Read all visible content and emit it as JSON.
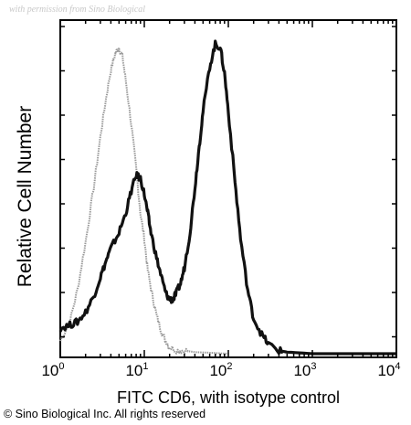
{
  "watermark": "with permission from Sino Biological",
  "chart_data": {
    "type": "line",
    "xlabel": "FITC CD6, with isotype control",
    "ylabel": "Relative Cell Number",
    "xscale": "log",
    "xlim": [
      1,
      10000
    ],
    "ylim": [
      0,
      100
    ],
    "x_ticks": [
      {
        "base": "10",
        "exp": "0"
      },
      {
        "base": "10",
        "exp": "1"
      },
      {
        "base": "10",
        "exp": "2"
      },
      {
        "base": "10",
        "exp": "3"
      },
      {
        "base": "10",
        "exp": "4"
      }
    ],
    "grid": false,
    "legend": "none",
    "series": [
      {
        "style": "isotype",
        "color": "#9a9a9a",
        "x": [
          1.0,
          1.3,
          1.6,
          2.0,
          2.5,
          3.0,
          3.5,
          4.0,
          4.5,
          5.0,
          5.5,
          6.0,
          7.0,
          8.0,
          9.0,
          10.0,
          11.0,
          12.5,
          14.0,
          16.0,
          18.0,
          20.0,
          25.0,
          30.0,
          40.0,
          60.0,
          100.0
        ],
        "y": [
          4,
          10,
          20,
          35,
          52,
          68,
          80,
          89,
          94,
          96,
          93,
          86,
          72,
          58,
          44,
          36,
          26,
          18,
          12,
          7,
          4,
          2,
          1,
          1,
          0.5,
          0.3,
          0
        ]
      },
      {
        "style": "cd6",
        "color": "#111111",
        "x": [
          1.0,
          1.3,
          1.6,
          2.0,
          2.5,
          3.0,
          3.5,
          4.0,
          5.0,
          6.0,
          7.0,
          8.0,
          9.0,
          10.0,
          11.0,
          12.0,
          14.0,
          16.0,
          18.0,
          20.0,
          22.0,
          24.0,
          27.0,
          30.0,
          35.0,
          40.0,
          45.0,
          50.0,
          60.0,
          70.0,
          80.0,
          90.0,
          100.0,
          120.0,
          140.0,
          170.0,
          200.0,
          250.0,
          300.0,
          400.0,
          500.0,
          1000.0,
          10000.0
        ],
        "y": [
          8,
          9,
          10,
          13,
          18,
          24,
          29,
          33,
          38,
          44,
          51,
          56,
          55,
          50,
          44,
          38,
          30,
          24,
          19,
          17,
          17,
          19,
          22,
          27,
          38,
          52,
          65,
          76,
          90,
          97,
          96,
          88,
          76,
          54,
          36,
          20,
          11,
          6,
          3,
          1,
          0.5,
          0,
          0
        ]
      }
    ]
  },
  "copyright": "© Sino Biological Inc. All rights reserved"
}
